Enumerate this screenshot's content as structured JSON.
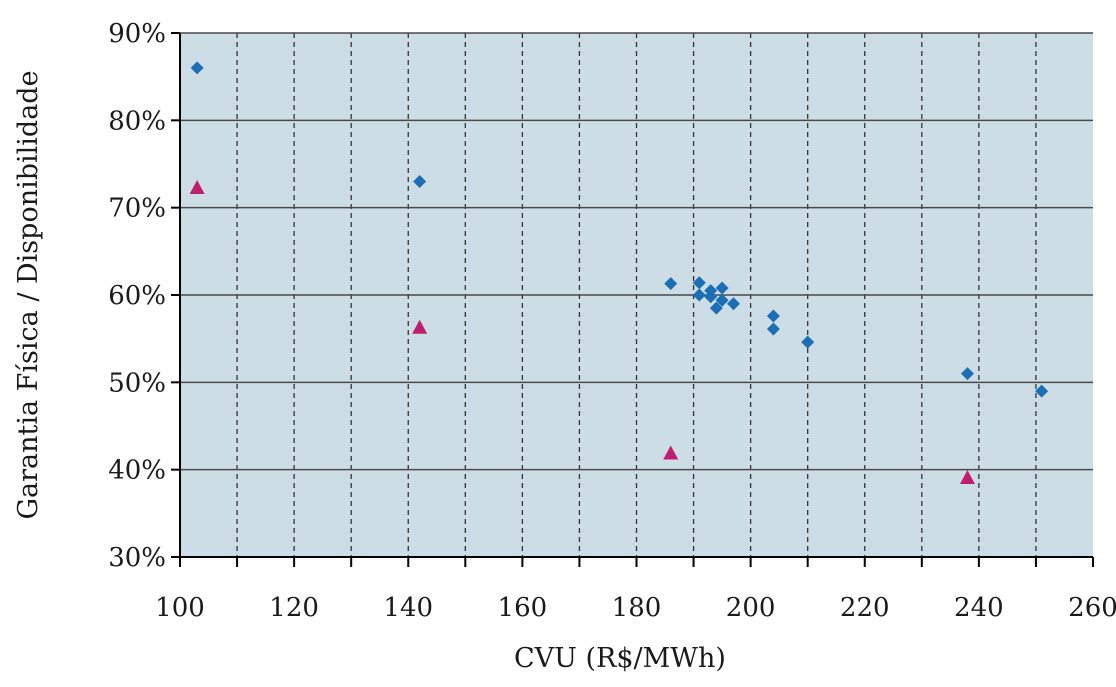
{
  "chart_data": {
    "type": "scatter",
    "xlabel": "CVU (R$/MWh)",
    "ylabel": "Garantia Física / Disponibilidade",
    "xlim": [
      100,
      260
    ],
    "ylim": [
      0.3,
      0.9
    ],
    "x_tick_labels": [
      "100",
      "120",
      "140",
      "160",
      "180",
      "200",
      "220",
      "240",
      "260"
    ],
    "y_tick_labels": [
      "30%",
      "40%",
      "50%",
      "60%",
      "70%",
      "80%",
      "90%"
    ],
    "grid": "vertical dashed lines every 10, horizontal solid lines every 10%",
    "colors": {
      "plot_background": "#cddde5",
      "series_diamond": "#1c6fb5",
      "series_triangle": "#c01f6e",
      "grid_dashed": "#333333",
      "grid_solid": "#4a4a4a"
    },
    "series": [
      {
        "marker": "diamond",
        "points": [
          [
            103,
            0.86
          ],
          [
            142,
            0.73
          ],
          [
            186,
            0.613
          ],
          [
            191,
            0.614
          ],
          [
            191,
            0.6
          ],
          [
            193,
            0.605
          ],
          [
            193,
            0.598
          ],
          [
            194,
            0.585
          ],
          [
            195,
            0.594
          ],
          [
            195,
            0.608
          ],
          [
            197,
            0.59
          ],
          [
            204,
            0.576
          ],
          [
            204,
            0.561
          ],
          [
            210,
            0.546
          ],
          [
            238,
            0.51
          ],
          [
            251,
            0.49
          ]
        ]
      },
      {
        "marker": "triangle",
        "points": [
          [
            103,
            0.722
          ],
          [
            142,
            0.562
          ],
          [
            186,
            0.418
          ],
          [
            238,
            0.39
          ]
        ]
      }
    ]
  }
}
